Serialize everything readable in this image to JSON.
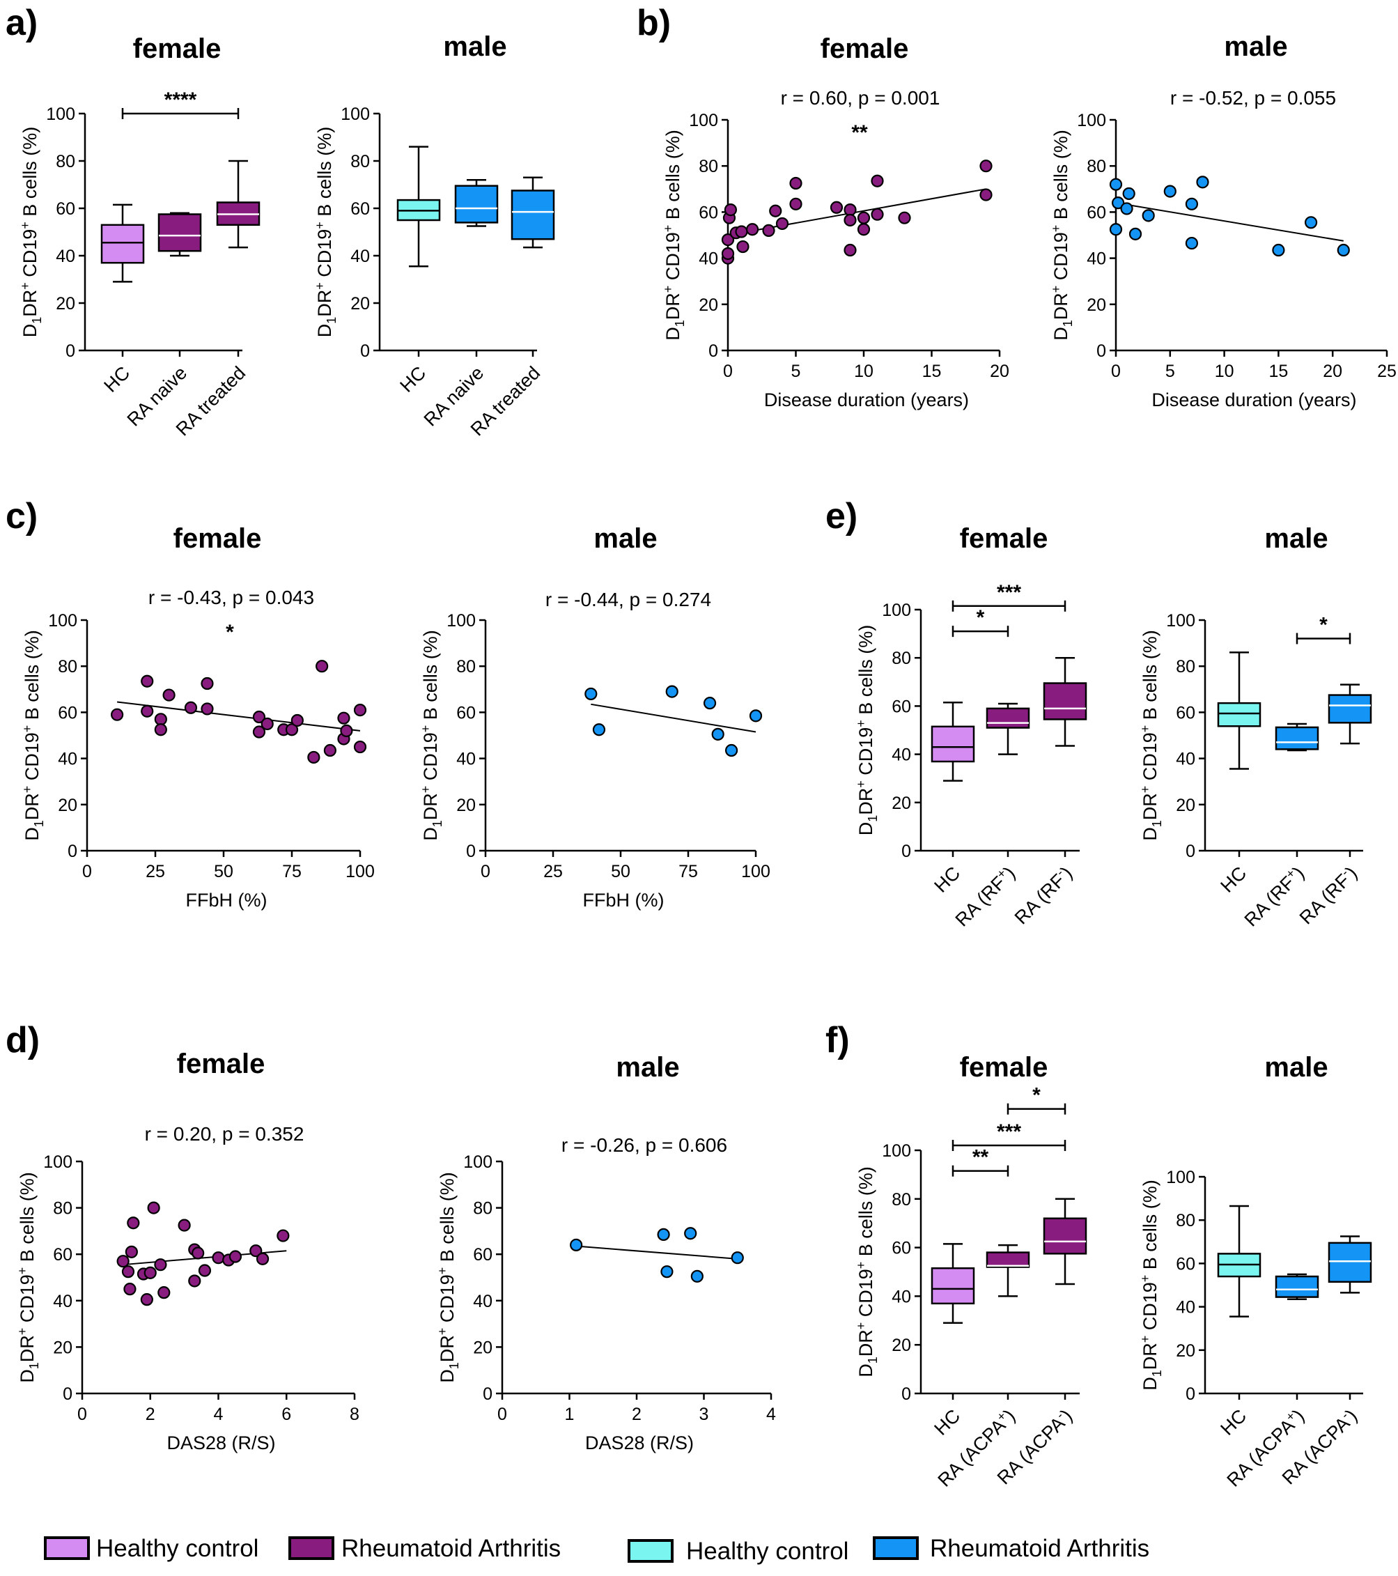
{
  "colors": {
    "female_hc": "#D58CF2",
    "female_ra": "#881C7F",
    "male_hc": "#7AF5F0",
    "male_ra": "#1495F5",
    "line": "#000000"
  },
  "legend": {
    "female_hc_label": "Healthy control",
    "female_ra_label": "Rheumatoid Arthritis",
    "male_hc_label": "Healthy control",
    "male_ra_label": "Rheumatoid Arthritis"
  },
  "chart_data": [
    {
      "id": "a_female",
      "type": "box",
      "panel_letter": "a)",
      "title": "female",
      "ylabel": "D1DR+ CD19+ B cells (%)",
      "ylim": [
        0,
        100
      ],
      "yticks": [
        0,
        20,
        40,
        60,
        80,
        100
      ],
      "categories": [
        "HC",
        "RA naive",
        "RA treated"
      ],
      "boxes": [
        {
          "category": "HC",
          "min": 29,
          "q1": 37,
          "median": 45.5,
          "q3": 53,
          "max": 61.5,
          "group": "hc"
        },
        {
          "category": "RA naive",
          "min": 40,
          "q1": 42,
          "median": 48.5,
          "q3": 57.5,
          "max": 58,
          "group": "ra"
        },
        {
          "category": "RA treated",
          "min": 43.5,
          "q1": 53,
          "median": 57.5,
          "q3": 62.5,
          "max": 80,
          "group": "ra"
        }
      ],
      "significance": [
        {
          "from": "HC",
          "to": "RA treated",
          "label": "****",
          "y": 100
        }
      ]
    },
    {
      "id": "a_male",
      "type": "box",
      "title": "male",
      "ylabel": "D1DR+ CD19+ B cells (%)",
      "ylim": [
        0,
        100
      ],
      "yticks": [
        0,
        20,
        40,
        60,
        80,
        100
      ],
      "categories": [
        "HC",
        "RA naive",
        "RA treated"
      ],
      "boxes": [
        {
          "category": "HC",
          "min": 35.5,
          "q1": 55,
          "median": 59,
          "q3": 63.5,
          "max": 86,
          "group": "hc"
        },
        {
          "category": "RA naive",
          "min": 52.5,
          "q1": 54,
          "median": 60,
          "q3": 69.5,
          "max": 72,
          "group": "ra"
        },
        {
          "category": "RA treated",
          "min": 43.5,
          "q1": 47,
          "median": 58.5,
          "q3": 67.5,
          "max": 73,
          "group": "ra"
        }
      ],
      "significance": []
    },
    {
      "id": "b_female",
      "type": "scatter",
      "panel_letter": "b)",
      "title": "female",
      "stat": "r = 0.60, p = 0.001",
      "star": "**",
      "ylabel": "D1DR+ CD19+ B cells (%)",
      "xlabel": "Disease duration (years)",
      "xlim": [
        0,
        20
      ],
      "xticks": [
        0,
        5,
        10,
        15,
        20
      ],
      "ylim": [
        0,
        100
      ],
      "yticks": [
        0,
        20,
        40,
        60,
        80,
        100
      ],
      "group": "ra",
      "points": [
        [
          0,
          40
        ],
        [
          0,
          42
        ],
        [
          0,
          48
        ],
        [
          0.1,
          57.5
        ],
        [
          0.2,
          61
        ],
        [
          0.6,
          51
        ],
        [
          1,
          51.5
        ],
        [
          1.1,
          45
        ],
        [
          1.8,
          52.5
        ],
        [
          3,
          52
        ],
        [
          3.5,
          60.5
        ],
        [
          4,
          55
        ],
        [
          5,
          72.5
        ],
        [
          5,
          63.5
        ],
        [
          8,
          62
        ],
        [
          9,
          61
        ],
        [
          9,
          56.5
        ],
        [
          9,
          43.5
        ],
        [
          10,
          57.5
        ],
        [
          10,
          52.5
        ],
        [
          11,
          73.5
        ],
        [
          11,
          59
        ],
        [
          13,
          57.5
        ],
        [
          19,
          80
        ],
        [
          19,
          67.5
        ]
      ],
      "fit": {
        "x": [
          0,
          19
        ],
        "y": [
          50,
          70
        ]
      }
    },
    {
      "id": "b_male",
      "type": "scatter",
      "title": "male",
      "stat": "r = -0.52, p = 0.055",
      "ylabel": "D1DR+ CD19+ B cells (%)",
      "xlabel": "Disease duration (years)",
      "xlim": [
        0,
        25
      ],
      "xticks": [
        0,
        5,
        10,
        15,
        20,
        25
      ],
      "ylim": [
        0,
        100
      ],
      "yticks": [
        0,
        20,
        40,
        60,
        80,
        100
      ],
      "group": "ra",
      "points": [
        [
          0,
          72
        ],
        [
          0,
          52.5
        ],
        [
          0.2,
          64
        ],
        [
          1,
          61.5
        ],
        [
          1.2,
          68
        ],
        [
          1.8,
          50.5
        ],
        [
          3,
          58.5
        ],
        [
          5,
          69
        ],
        [
          7,
          63.5
        ],
        [
          7,
          46.5
        ],
        [
          8,
          73
        ],
        [
          15,
          43.5
        ],
        [
          18,
          55.5
        ],
        [
          21,
          43.5
        ]
      ],
      "fit": {
        "x": [
          0,
          21
        ],
        "y": [
          64,
          47.5
        ]
      }
    },
    {
      "id": "c_female",
      "type": "scatter",
      "panel_letter": "c)",
      "title": "female",
      "stat": "r = -0.43, p = 0.043",
      "star": "*",
      "ylabel": "D1DR+ CD19+ B cells (%)",
      "xlabel": "FFbH (%)",
      "xlim": [
        0,
        100
      ],
      "xticks": [
        0,
        25,
        50,
        75,
        100
      ],
      "ylim": [
        0,
        100
      ],
      "yticks": [
        0,
        20,
        40,
        60,
        80,
        100
      ],
      "group": "ra",
      "points": [
        [
          11,
          59
        ],
        [
          22,
          73.5
        ],
        [
          22,
          60.5
        ],
        [
          27,
          57
        ],
        [
          27,
          52.5
        ],
        [
          30,
          67.5
        ],
        [
          38,
          62
        ],
        [
          44,
          72.5
        ],
        [
          44,
          61.5
        ],
        [
          63,
          58
        ],
        [
          63,
          51.5
        ],
        [
          66,
          55
        ],
        [
          72,
          52.5
        ],
        [
          75,
          52.5
        ],
        [
          77,
          56.5
        ],
        [
          83,
          40.5
        ],
        [
          86,
          80
        ],
        [
          89,
          43.5
        ],
        [
          94,
          57.5
        ],
        [
          94,
          48.5
        ],
        [
          95,
          52
        ],
        [
          100,
          61
        ],
        [
          100,
          45
        ]
      ],
      "fit": {
        "x": [
          11,
          100
        ],
        "y": [
          64.5,
          52
        ]
      }
    },
    {
      "id": "c_male",
      "type": "scatter",
      "title": "male",
      "stat": "r = -0.44, p = 0.274",
      "ylabel": "D1DR+ CD19+ B cells (%)",
      "xlabel": "FFbH (%)",
      "xlim": [
        0,
        100
      ],
      "xticks": [
        0,
        25,
        50,
        75,
        100
      ],
      "ylim": [
        0,
        100
      ],
      "yticks": [
        0,
        20,
        40,
        60,
        80,
        100
      ],
      "group": "ra",
      "points": [
        [
          39,
          68
        ],
        [
          42,
          52.5
        ],
        [
          69,
          69
        ],
        [
          83,
          64
        ],
        [
          86,
          50.5
        ],
        [
          91,
          43.5
        ],
        [
          100,
          58.5
        ]
      ],
      "fit": {
        "x": [
          39,
          100
        ],
        "y": [
          63.5,
          51.5
        ]
      }
    },
    {
      "id": "d_female",
      "type": "scatter",
      "panel_letter": "d)",
      "title": "female",
      "stat": "r = 0.20, p = 0.352",
      "ylabel": "D1DR+ CD19+ B cells (%)",
      "xlabel": "DAS28 (R/S)",
      "xlim": [
        0,
        8
      ],
      "xticks": [
        0,
        2,
        4,
        6,
        8
      ],
      "ylim": [
        0,
        100
      ],
      "yticks": [
        0,
        20,
        40,
        60,
        80,
        100
      ],
      "group": "ra",
      "points": [
        [
          1.2,
          57
        ],
        [
          1.35,
          52.5
        ],
        [
          1.4,
          45
        ],
        [
          1.45,
          61
        ],
        [
          1.5,
          73.5
        ],
        [
          1.8,
          51.5
        ],
        [
          1.9,
          40.5
        ],
        [
          2,
          52
        ],
        [
          2.1,
          80
        ],
        [
          2.3,
          55.5
        ],
        [
          2.4,
          43.5
        ],
        [
          3,
          72.5
        ],
        [
          3.3,
          48.5
        ],
        [
          3.3,
          62
        ],
        [
          3.4,
          60.5
        ],
        [
          3.6,
          53
        ],
        [
          4,
          58.5
        ],
        [
          4.3,
          57.5
        ],
        [
          4.5,
          59
        ],
        [
          5.1,
          61.5
        ],
        [
          5.3,
          58
        ],
        [
          5.9,
          68
        ]
      ],
      "fit": {
        "x": [
          1.2,
          6
        ],
        "y": [
          55.5,
          61.5
        ]
      }
    },
    {
      "id": "d_male",
      "type": "scatter",
      "title": "male",
      "stat": "r = -0.26, p = 0.606",
      "ylabel": "D1DR+ CD19+ B cells (%)",
      "xlabel": "DAS28 (R/S)",
      "xlim": [
        0,
        4
      ],
      "xticks": [
        0,
        1,
        2,
        3,
        4
      ],
      "ylim": [
        0,
        100
      ],
      "yticks": [
        0,
        20,
        40,
        60,
        80,
        100
      ],
      "group": "ra",
      "points": [
        [
          1.1,
          64
        ],
        [
          2.4,
          68.5
        ],
        [
          2.45,
          52.5
        ],
        [
          2.8,
          69
        ],
        [
          2.9,
          50.5
        ],
        [
          3.5,
          58.5
        ]
      ],
      "fit": {
        "x": [
          1.1,
          3.5
        ],
        "y": [
          63.5,
          58
        ]
      }
    },
    {
      "id": "e_female",
      "type": "box",
      "panel_letter": "e)",
      "title": "female",
      "ylabel": "D1DR+ CD19+ B cells (%)",
      "ylim": [
        0,
        100
      ],
      "yticks": [
        0,
        20,
        40,
        60,
        80,
        100
      ],
      "categories": [
        "HC",
        "RA (RF+)",
        "RA (RF-)"
      ],
      "boxes": [
        {
          "category": "HC",
          "min": 29,
          "q1": 37,
          "median": 43,
          "q3": 51.5,
          "max": 61.5,
          "group": "hc"
        },
        {
          "category": "RA (RF+)",
          "min": 40,
          "q1": 51,
          "median": 53,
          "q3": 59,
          "max": 61,
          "group": "ra"
        },
        {
          "category": "RA (RF-)",
          "min": 43.5,
          "q1": 54.5,
          "median": 59,
          "q3": 69.5,
          "max": 80,
          "group": "ra"
        }
      ],
      "significance": [
        {
          "from": "HC",
          "to": "RA (RF+)",
          "label": "*",
          "y": 91
        },
        {
          "from": "HC",
          "to": "RA (RF-)",
          "label": "***",
          "y": 101.5
        }
      ]
    },
    {
      "id": "e_male",
      "type": "box",
      "title": "male",
      "ylabel": "D1DR+ CD19+ B cells (%)",
      "ylim": [
        0,
        100
      ],
      "yticks": [
        0,
        20,
        40,
        60,
        80,
        100
      ],
      "categories": [
        "HC",
        "RA (RF+)",
        "RA (RF-)"
      ],
      "boxes": [
        {
          "category": "HC",
          "min": 35.5,
          "q1": 54,
          "median": 59.5,
          "q3": 64,
          "max": 86,
          "group": "hc"
        },
        {
          "category": "RA (RF+)",
          "min": 43.5,
          "q1": 44,
          "median": 47,
          "q3": 53.5,
          "max": 55,
          "group": "ra"
        },
        {
          "category": "RA (RF-)",
          "min": 46.5,
          "q1": 55.5,
          "median": 63,
          "q3": 67.5,
          "max": 72,
          "group": "ra"
        }
      ],
      "significance": [
        {
          "from": "RA (RF+)",
          "to": "RA (RF-)",
          "label": "*",
          "y": 92
        }
      ]
    },
    {
      "id": "f_female",
      "type": "box",
      "panel_letter": "f)",
      "title": "female",
      "ylabel": "D1DR+ CD19+ B cells (%)",
      "ylim": [
        0,
        100
      ],
      "yticks": [
        0,
        20,
        40,
        60,
        80,
        100
      ],
      "categories": [
        "HC",
        "RA (ACPA+)",
        "RA (ACPA-)"
      ],
      "boxes": [
        {
          "category": "HC",
          "min": 29,
          "q1": 37,
          "median": 43,
          "q3": 51.5,
          "max": 61.5,
          "group": "hc"
        },
        {
          "category": "RA (ACPA+)",
          "min": 40,
          "q1": 52,
          "median": 52.5,
          "q3": 58,
          "max": 61,
          "group": "ra"
        },
        {
          "category": "RA (ACPA-)",
          "min": 45,
          "q1": 57.5,
          "median": 62.5,
          "q3": 72,
          "max": 80,
          "group": "ra"
        }
      ],
      "significance": [
        {
          "from": "HC",
          "to": "RA (ACPA+)",
          "label": "**",
          "y": 91.5
        },
        {
          "from": "HC",
          "to": "RA (ACPA-)",
          "label": "***",
          "y": 102
        },
        {
          "from": "RA (ACPA+)",
          "to": "RA (ACPA-)",
          "label": "*",
          "y": 117
        }
      ]
    },
    {
      "id": "f_male",
      "type": "box",
      "title": "male",
      "ylabel": "D1DR+ CD19+ B cells (%)",
      "ylim": [
        0,
        100
      ],
      "yticks": [
        0,
        20,
        40,
        60,
        80,
        100
      ],
      "categories": [
        "HC",
        "RA (ACPA+)",
        "RA (ACPA-)"
      ],
      "boxes": [
        {
          "category": "HC",
          "min": 35.5,
          "q1": 54,
          "median": 59.5,
          "q3": 64.5,
          "max": 86.5,
          "group": "hc"
        },
        {
          "category": "RA (ACPA+)",
          "min": 43.5,
          "q1": 44.5,
          "median": 48,
          "q3": 54,
          "max": 55,
          "group": "ra"
        },
        {
          "category": "RA (ACPA-)",
          "min": 46.5,
          "q1": 51.5,
          "median": 61,
          "q3": 69.5,
          "max": 72.5,
          "group": "ra"
        }
      ],
      "significance": []
    }
  ]
}
